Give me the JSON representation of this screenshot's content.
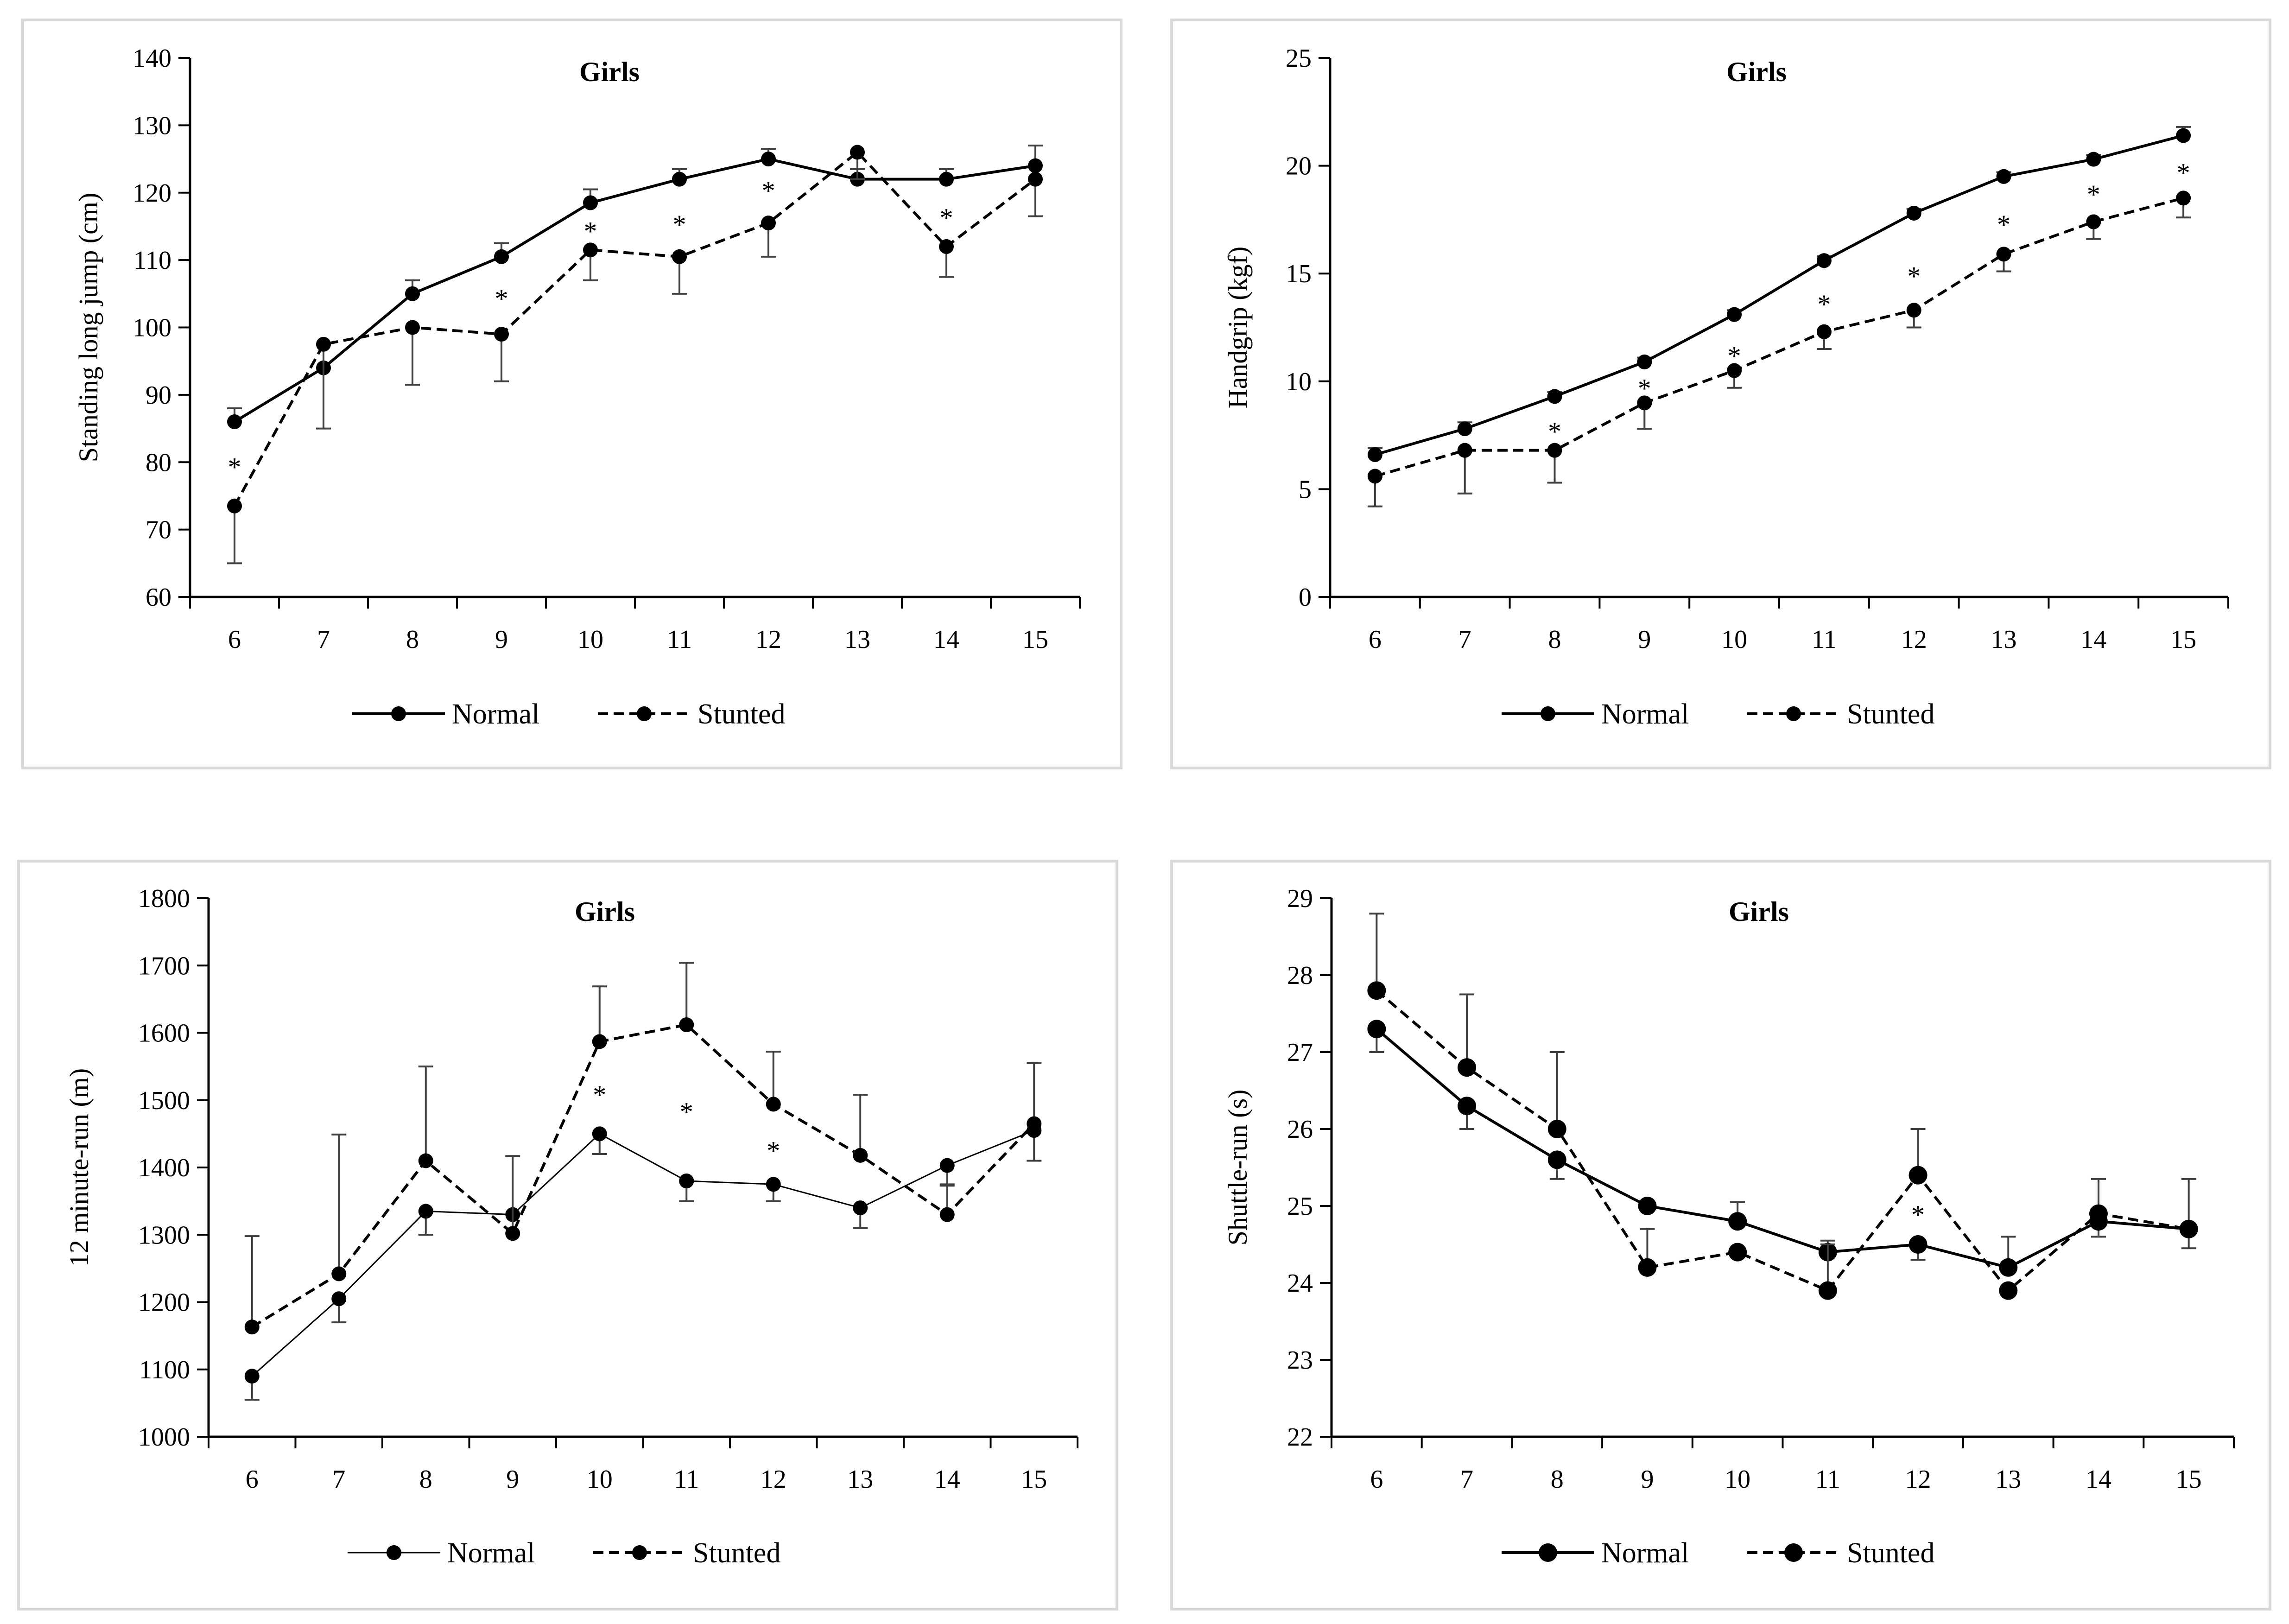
{
  "charts": [
    {
      "chart_data": {
        "type": "line",
        "title": "Girls",
        "ylabel": "Standing long jump (cm)",
        "xlabel": "",
        "categories": [
          "6",
          "7",
          "8",
          "9",
          "10",
          "11",
          "12",
          "13",
          "14",
          "15"
        ],
        "ylim": [
          60,
          140
        ],
        "yticks": [
          "60",
          "70",
          "80",
          "90",
          "100",
          "110",
          "120",
          "130",
          "140"
        ],
        "series": [
          {
            "name": "Normal",
            "style": "solid",
            "values": [
              86,
              94,
              105,
              110.5,
              118.5,
              122,
              125,
              122,
              122,
              124
            ],
            "err_up": [
              2,
              0,
              2,
              2,
              2,
              1.5,
              1.5,
              1.5,
              1.5,
              3
            ],
            "err_down": [
              0,
              0,
              0,
              0,
              0,
              0,
              0,
              0,
              0,
              0
            ]
          },
          {
            "name": "Stunted",
            "style": "dashed",
            "values": [
              73.5,
              97.5,
              100,
              99,
              111.5,
              110.5,
              115.5,
              126,
              112,
              122
            ],
            "err_up": [
              0,
              0,
              0,
              0,
              0,
              0,
              0,
              0,
              0,
              0
            ],
            "err_down": [
              8.5,
              12.5,
              8.5,
              7,
              4.5,
              5.5,
              5,
              4,
              4.5,
              5.5
            ]
          }
        ],
        "annotations": [
          {
            "x": "6",
            "y": 80,
            "text": "*"
          },
          {
            "x": "9",
            "y": 105,
            "text": "*"
          },
          {
            "x": "10",
            "y": 115,
            "text": "*"
          },
          {
            "x": "11",
            "y": 116,
            "text": "*"
          },
          {
            "x": "12",
            "y": 121,
            "text": "*"
          },
          {
            "x": "14",
            "y": 117,
            "text": "*"
          }
        ],
        "legend": "bottom",
        "grid": false
      }
    },
    {
      "chart_data": {
        "type": "line",
        "title": "Girls",
        "ylabel": "Handgrip (kgf)",
        "xlabel": "",
        "categories": [
          "6",
          "7",
          "8",
          "9",
          "10",
          "11",
          "12",
          "13",
          "14",
          "15"
        ],
        "ylim": [
          0,
          25
        ],
        "yticks": [
          "0",
          "5",
          "10",
          "15",
          "20",
          "25"
        ],
        "series": [
          {
            "name": "Normal",
            "style": "solid",
            "values": [
              6.6,
              7.8,
              9.3,
              10.9,
              13.1,
              15.6,
              17.8,
              19.5,
              20.3,
              21.4
            ],
            "err_up": [
              0.3,
              0.3,
              0.2,
              0.2,
              0.2,
              0.2,
              0.2,
              0.2,
              0.2,
              0.4
            ],
            "err_down": [
              0,
              0,
              0,
              0,
              0,
              0,
              0,
              0,
              0,
              0
            ]
          },
          {
            "name": "Stunted",
            "style": "dashed",
            "values": [
              5.6,
              6.8,
              6.8,
              9.0,
              10.5,
              12.3,
              13.3,
              15.9,
              17.4,
              18.5
            ],
            "err_up": [
              0,
              0,
              0,
              0,
              0,
              0,
              0,
              0,
              0,
              0
            ],
            "err_down": [
              1.4,
              2.0,
              1.5,
              1.2,
              0.8,
              0.8,
              0.8,
              0.8,
              0.8,
              0.9
            ]
          }
        ],
        "annotations": [
          {
            "x": "8",
            "y": 7.9,
            "text": "*"
          },
          {
            "x": "9",
            "y": 9.9,
            "text": "*"
          },
          {
            "x": "10",
            "y": 11.4,
            "text": "*"
          },
          {
            "x": "11",
            "y": 13.8,
            "text": "*"
          },
          {
            "x": "12",
            "y": 15.1,
            "text": "*"
          },
          {
            "x": "13",
            "y": 17.5,
            "text": "*"
          },
          {
            "x": "14",
            "y": 18.9,
            "text": "*"
          },
          {
            "x": "15",
            "y": 19.9,
            "text": "*"
          }
        ],
        "legend": "bottom",
        "grid": false
      }
    },
    {
      "chart_data": {
        "type": "line",
        "title": "Girls",
        "ylabel": "12 minute-run (m)",
        "xlabel": "",
        "categories": [
          "6",
          "7",
          "8",
          "9",
          "10",
          "11",
          "12",
          "13",
          "14",
          "15"
        ],
        "ylim": [
          1000,
          1800
        ],
        "yticks": [
          "1000",
          "1100",
          "1200",
          "1300",
          "1400",
          "1500",
          "1600",
          "1700",
          "1800"
        ],
        "series": [
          {
            "name": "Normal",
            "style": "thin",
            "values": [
              1090,
              1205,
              1335,
              1330,
              1450,
              1380,
              1375,
              1340,
              1403,
              1455
            ],
            "err_up": [
              0,
              0,
              0,
              0,
              0,
              0,
              0,
              0,
              0,
              0
            ],
            "err_down": [
              35,
              35,
              35,
              0,
              30,
              30,
              25,
              30,
              30,
              45
            ]
          },
          {
            "name": "Stunted",
            "style": "dashed",
            "values": [
              1163,
              1242,
              1410,
              1302,
              1587,
              1612,
              1494,
              1418,
              1330,
              1465
            ],
            "err_up": [
              135,
              207,
              140,
              115,
              82,
              92,
              78,
              90,
              45,
              90
            ],
            "err_down": [
              0,
              0,
              0,
              0,
              0,
              0,
              0,
              0,
              0,
              0
            ]
          }
        ],
        "annotations": [
          {
            "x": "10",
            "y": 1515,
            "text": "*"
          },
          {
            "x": "11",
            "y": 1490,
            "text": "*"
          },
          {
            "x": "12",
            "y": 1432,
            "text": "*"
          }
        ],
        "legend": "bottom",
        "grid": false
      }
    },
    {
      "chart_data": {
        "type": "line",
        "title": "Girls",
        "ylabel": "Shuttle-run (s)",
        "xlabel": "",
        "categories": [
          "6",
          "7",
          "8",
          "9",
          "10",
          "11",
          "12",
          "13",
          "14",
          "15"
        ],
        "ylim": [
          22,
          29
        ],
        "yticks": [
          "22",
          "23",
          "24",
          "25",
          "26",
          "27",
          "28",
          "29"
        ],
        "series": [
          {
            "name": "Normal",
            "style": "solid",
            "values": [
              27.3,
              26.3,
              25.6,
              25.0,
              24.8,
              24.4,
              24.5,
              24.2,
              24.8,
              24.7
            ],
            "err_up": [
              0,
              0,
              0,
              0,
              0.25,
              0.15,
              0,
              0.4,
              0,
              0
            ],
            "err_down": [
              0.3,
              0.3,
              0.25,
              0,
              0,
              0,
              0.2,
              0,
              0.2,
              0.25
            ]
          },
          {
            "name": "Stunted",
            "style": "dashed",
            "values": [
              27.8,
              26.8,
              26.0,
              24.2,
              24.4,
              23.9,
              25.4,
              23.9,
              24.9,
              24.7
            ],
            "err_up": [
              1.0,
              0.95,
              1.0,
              0.5,
              0,
              0.6,
              0.6,
              0,
              0.45,
              0.65
            ],
            "err_down": [
              0,
              0,
              0,
              0,
              0,
              0,
              0,
              0,
              0,
              0
            ]
          }
        ],
        "annotations": [
          {
            "x": "12",
            "y": 24.95,
            "text": "*"
          }
        ],
        "legend": "bottom",
        "grid": false
      }
    }
  ]
}
